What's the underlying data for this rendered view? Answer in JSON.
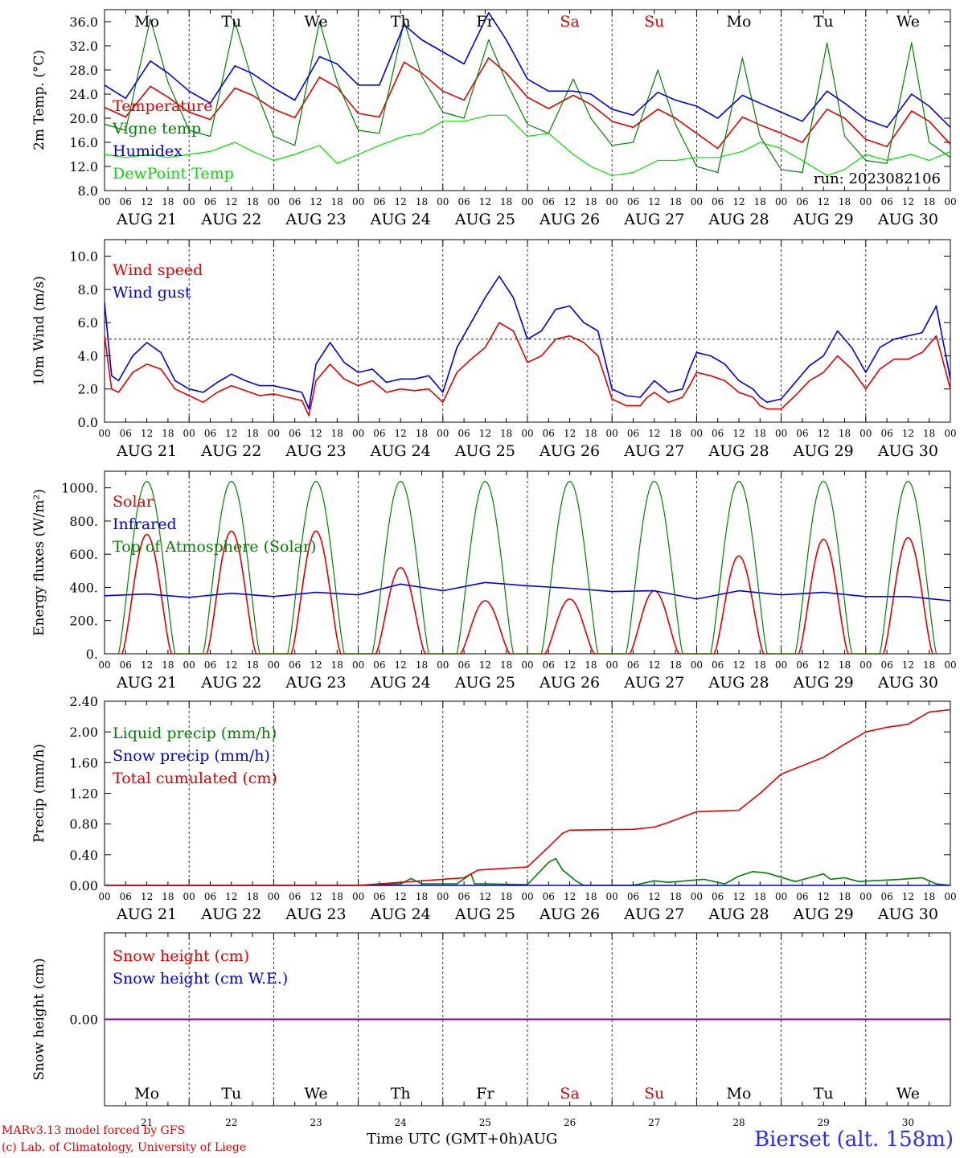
{
  "meta": {
    "run_label": "run: 2023082106",
    "model_line": "MARv3.13 model forced by GFS",
    "lab_line": "(c) Lab. of Climatology, University of Liege",
    "time_axis": "Time UTC (GMT+0h)",
    "month": "AUG",
    "station": "Bierset (alt. 158m)",
    "colors": {
      "red": "#e00000",
      "green": "#008000",
      "blue": "#0000e0",
      "lightgreen": "#00e000",
      "purple": "#800080"
    }
  },
  "days": {
    "weekdays": [
      "Mo",
      "Tu",
      "We",
      "Th",
      "Fr",
      "Sa",
      "Su",
      "Mo",
      "Tu",
      "We"
    ],
    "weekend": [
      false,
      false,
      false,
      false,
      false,
      true,
      true,
      false,
      false,
      false
    ],
    "date_labels": [
      "AUG 21",
      "AUG 22",
      "AUG 23",
      "AUG 24",
      "AUG 25",
      "AUG 26",
      "AUG 27",
      "AUG 28",
      "AUG 29",
      "AUG 30"
    ],
    "day_numbers": [
      "21",
      "22",
      "23",
      "24",
      "25",
      "26",
      "27",
      "28",
      "29",
      "30"
    ],
    "hour_ticks": [
      "00",
      "06",
      "12",
      "18"
    ],
    "end_tick": "00"
  },
  "chart_data": [
    {
      "type": "line",
      "ylabel": "2m Temp. (°C)",
      "ylim": [
        8,
        38
      ],
      "yticks": [
        "8.0",
        "12.0",
        "16.0",
        "20.0",
        "24.0",
        "28.0",
        "32.0",
        "36.0"
      ],
      "x_unit": "hours since Aug 21 00 UTC",
      "series": [
        {
          "name": "Temperature",
          "color": "#e00000",
          "x": [
            0,
            6,
            13,
            18,
            24,
            30,
            37,
            42,
            48,
            54,
            61,
            66,
            72,
            78,
            85,
            90,
            96,
            102,
            109,
            114,
            120,
            126,
            133,
            138,
            144,
            150,
            157,
            162,
            168,
            174,
            181,
            186,
            192,
            198,
            205,
            210,
            216,
            222,
            229,
            234,
            240
          ],
          "values": [
            21.8,
            20.2,
            25.3,
            23.5,
            21.0,
            19.8,
            25.0,
            23.8,
            21.5,
            20.1,
            26.8,
            25.1,
            20.8,
            20.2,
            29.3,
            27.5,
            24.5,
            23.0,
            30.0,
            27.5,
            23.5,
            21.6,
            23.8,
            22.3,
            19.5,
            18.5,
            21.5,
            20.0,
            17.5,
            15.0,
            20.2,
            18.9,
            17.5,
            16.0,
            21.5,
            20.0,
            16.5,
            15.3,
            21.2,
            19.5,
            15.7
          ]
        },
        {
          "name": "Vigne temp",
          "color": "#008000",
          "x": [
            0,
            6,
            13,
            18,
            24,
            30,
            37,
            42,
            48,
            54,
            61,
            66,
            72,
            78,
            85,
            90,
            96,
            102,
            109,
            114,
            120,
            126,
            133,
            138,
            144,
            150,
            157,
            162,
            168,
            174,
            181,
            186,
            192,
            198,
            205,
            210,
            216,
            222,
            229,
            234,
            240
          ],
          "values": [
            19.0,
            18.0,
            36.5,
            26.0,
            18.0,
            17.0,
            36.0,
            26.0,
            17.0,
            15.5,
            36.0,
            26.0,
            18.0,
            17.5,
            36.0,
            27.0,
            21.0,
            20.0,
            33.0,
            26.0,
            19.0,
            17.5,
            26.5,
            20.0,
            15.5,
            16.0,
            28.0,
            19.0,
            12.0,
            11.0,
            30.0,
            17.0,
            11.5,
            11.0,
            32.5,
            17.0,
            13.0,
            12.5,
            32.5,
            16.0,
            13.5
          ]
        },
        {
          "name": "Humidex",
          "color": "#0000e0",
          "x": [
            0,
            6,
            13,
            18,
            24,
            30,
            37,
            42,
            48,
            54,
            61,
            66,
            72,
            78,
            85,
            90,
            96,
            102,
            109,
            114,
            120,
            126,
            133,
            138,
            144,
            150,
            157,
            162,
            168,
            174,
            181,
            186,
            192,
            198,
            205,
            210,
            216,
            222,
            229,
            234,
            240
          ],
          "values": [
            25.5,
            23.3,
            29.5,
            27.5,
            24.5,
            22.5,
            28.7,
            27.4,
            25.0,
            23.0,
            30.2,
            29.0,
            25.5,
            25.5,
            35.5,
            33.0,
            31.0,
            29.0,
            37.5,
            33.0,
            26.5,
            24.5,
            24.5,
            24.0,
            21.5,
            20.5,
            24.3,
            23.0,
            22.0,
            20.0,
            23.8,
            22.5,
            21.0,
            19.5,
            24.5,
            22.5,
            19.8,
            18.5,
            24.0,
            22.0,
            18.5
          ]
        },
        {
          "name": "DewPoint Temp",
          "color": "#00e000",
          "x": [
            0,
            6,
            13,
            18,
            24,
            30,
            37,
            42,
            48,
            54,
            61,
            66,
            72,
            78,
            85,
            90,
            96,
            102,
            109,
            114,
            120,
            126,
            133,
            138,
            144,
            150,
            157,
            162,
            168,
            174,
            181,
            186,
            192,
            198,
            205,
            210,
            216,
            222,
            229,
            234,
            240
          ],
          "values": [
            14.0,
            13.5,
            14.0,
            13.5,
            14.0,
            14.5,
            16.0,
            14.5,
            13.0,
            14.0,
            15.5,
            12.5,
            14.0,
            15.5,
            17.0,
            17.5,
            19.5,
            19.5,
            20.5,
            20.5,
            17.0,
            17.5,
            14.0,
            12.0,
            10.5,
            11.0,
            13.0,
            13.0,
            13.5,
            13.5,
            14.5,
            16.0,
            15.0,
            13.0,
            10.5,
            11.5,
            14.0,
            13.0,
            14.0,
            13.0,
            14.5
          ]
        }
      ]
    },
    {
      "type": "line",
      "ylabel": "10m Wind (m/s)",
      "ylim": [
        0,
        11
      ],
      "yticks": [
        "0.0",
        "2.0",
        "4.0",
        "6.0",
        "8.0",
        "10.0"
      ],
      "reference_line": 5.0,
      "series": [
        {
          "name": "Wind speed",
          "color": "#e00000",
          "x": [
            0,
            2,
            4,
            8,
            12,
            16,
            20,
            24,
            28,
            32,
            36,
            40,
            44,
            48,
            52,
            56,
            58,
            60,
            64,
            68,
            72,
            76,
            80,
            84,
            88,
            92,
            96,
            100,
            104,
            108,
            112,
            116,
            120,
            124,
            128,
            132,
            136,
            140,
            144,
            148,
            152,
            154,
            156,
            160,
            164,
            166,
            168,
            172,
            176,
            180,
            184,
            186,
            188,
            192,
            196,
            200,
            204,
            208,
            212,
            216,
            220,
            224,
            228,
            232,
            236,
            240
          ],
          "values": [
            5.2,
            2.0,
            1.8,
            3.0,
            3.5,
            3.2,
            2.0,
            1.6,
            1.2,
            1.8,
            2.2,
            1.9,
            1.6,
            1.7,
            1.5,
            1.3,
            0.4,
            2.5,
            3.5,
            2.6,
            2.2,
            2.5,
            1.8,
            2.0,
            1.9,
            2.0,
            1.2,
            3.0,
            3.8,
            4.5,
            6.0,
            5.5,
            3.6,
            4.0,
            5.0,
            5.2,
            4.8,
            4.0,
            1.4,
            1.0,
            1.0,
            1.5,
            1.8,
            1.2,
            1.5,
            2.2,
            3.0,
            2.8,
            2.5,
            1.8,
            1.5,
            1.0,
            0.8,
            0.8,
            1.6,
            2.5,
            3.0,
            4.0,
            3.2,
            2.0,
            3.2,
            3.8,
            3.8,
            4.2,
            5.2,
            2.0
          ]
        },
        {
          "name": "Wind gust",
          "color": "#0000e0",
          "x": [
            0,
            2,
            4,
            8,
            12,
            16,
            20,
            24,
            28,
            32,
            36,
            40,
            44,
            48,
            52,
            56,
            58,
            60,
            64,
            68,
            72,
            76,
            80,
            84,
            88,
            92,
            96,
            100,
            104,
            108,
            112,
            116,
            120,
            124,
            128,
            132,
            136,
            140,
            144,
            148,
            152,
            154,
            156,
            160,
            164,
            166,
            168,
            172,
            176,
            180,
            184,
            186,
            188,
            192,
            196,
            200,
            204,
            208,
            212,
            216,
            220,
            224,
            228,
            232,
            236,
            240
          ],
          "values": [
            7.2,
            2.8,
            2.5,
            4.0,
            4.8,
            4.2,
            2.5,
            2.0,
            1.8,
            2.4,
            2.9,
            2.5,
            2.2,
            2.2,
            2.0,
            1.8,
            0.8,
            3.5,
            4.8,
            3.6,
            3.0,
            3.2,
            2.4,
            2.6,
            2.6,
            2.8,
            1.8,
            4.5,
            6.0,
            7.5,
            8.8,
            7.5,
            5.0,
            5.5,
            6.8,
            7.0,
            6.0,
            5.5,
            2.0,
            1.6,
            1.5,
            2.0,
            2.5,
            1.8,
            2.0,
            3.2,
            4.2,
            4.0,
            3.5,
            2.5,
            2.0,
            1.5,
            1.2,
            1.4,
            2.4,
            3.4,
            4.0,
            5.5,
            4.5,
            3.0,
            4.5,
            5.0,
            5.2,
            5.4,
            7.0,
            2.6
          ]
        }
      ]
    },
    {
      "type": "line",
      "ylabel": "Energy fluxes (W/m²)",
      "ylim": [
        0,
        1100
      ],
      "yticks": [
        "0.",
        "200.",
        "400.",
        "600.",
        "800.",
        "1000."
      ],
      "series": [
        {
          "name": "Solar",
          "color": "#e00000",
          "day_peaks": [
            720,
            740,
            740,
            520,
            320,
            330,
            380,
            590,
            690,
            700
          ]
        },
        {
          "name": "Infrared",
          "color": "#0000e0",
          "x": [
            0,
            12,
            24,
            36,
            48,
            60,
            72,
            84,
            96,
            108,
            120,
            132,
            144,
            156,
            168,
            180,
            192,
            204,
            216,
            228,
            240
          ],
          "values": [
            350,
            360,
            340,
            365,
            345,
            370,
            355,
            420,
            380,
            430,
            410,
            395,
            375,
            380,
            330,
            380,
            355,
            370,
            345,
            345,
            320
          ]
        },
        {
          "name": "Top of Atmosphere (Solar)",
          "color": "#008000",
          "day_peak": 1040
        }
      ]
    },
    {
      "type": "line",
      "ylabel": "Precip (mm/h)",
      "ylim": [
        0,
        2.4
      ],
      "yticks": [
        "0.00",
        "0.40",
        "0.80",
        "1.20",
        "1.60",
        "2.00",
        "2.40"
      ],
      "series": [
        {
          "name": "Liquid precip (mm/h)",
          "color": "#008000",
          "x": [
            0,
            72,
            84,
            87,
            90,
            100,
            104,
            105,
            108,
            120,
            126,
            128,
            130,
            134,
            136,
            150,
            156,
            160,
            170,
            176,
            180,
            184,
            188,
            196,
            200,
            204,
            206,
            210,
            214,
            226,
            232,
            236,
            240
          ],
          "values": [
            0,
            0,
            0.02,
            0.09,
            0.02,
            0.02,
            0.15,
            0.02,
            0.02,
            0.01,
            0.3,
            0.35,
            0.2,
            0.05,
            0.0,
            0.0,
            0.06,
            0.04,
            0.08,
            0.02,
            0.12,
            0.18,
            0.16,
            0.05,
            0.1,
            0.15,
            0.08,
            0.1,
            0.05,
            0.08,
            0.1,
            0.02,
            0.0
          ]
        },
        {
          "name": "Snow precip (mm/h)",
          "color": "#0000e0",
          "x": [
            0,
            240
          ],
          "values": [
            0,
            0
          ]
        },
        {
          "name": "Total cumulated (cm)",
          "color": "#e00000",
          "x": [
            0,
            72,
            84,
            96,
            102,
            106,
            120,
            126,
            130,
            132,
            150,
            156,
            160,
            168,
            180,
            186,
            192,
            204,
            210,
            216,
            222,
            228,
            234,
            240
          ],
          "values": [
            0,
            0,
            0.04,
            0.08,
            0.1,
            0.2,
            0.24,
            0.5,
            0.68,
            0.72,
            0.73,
            0.76,
            0.82,
            0.96,
            0.98,
            1.2,
            1.45,
            1.67,
            1.84,
            2.0,
            2.06,
            2.1,
            2.26,
            2.29
          ]
        }
      ]
    },
    {
      "type": "line",
      "ylabel": "Snow height (cm)",
      "yticks": [
        "0.00"
      ],
      "series": [
        {
          "name": "Snow height (cm)",
          "color": "#e00000",
          "x": [
            0,
            240
          ],
          "values": [
            0,
            0
          ]
        },
        {
          "name": "Snow height (cm W.E.)",
          "color": "#0000e0",
          "x": [
            0,
            240
          ],
          "values": [
            0,
            0
          ]
        }
      ]
    }
  ]
}
